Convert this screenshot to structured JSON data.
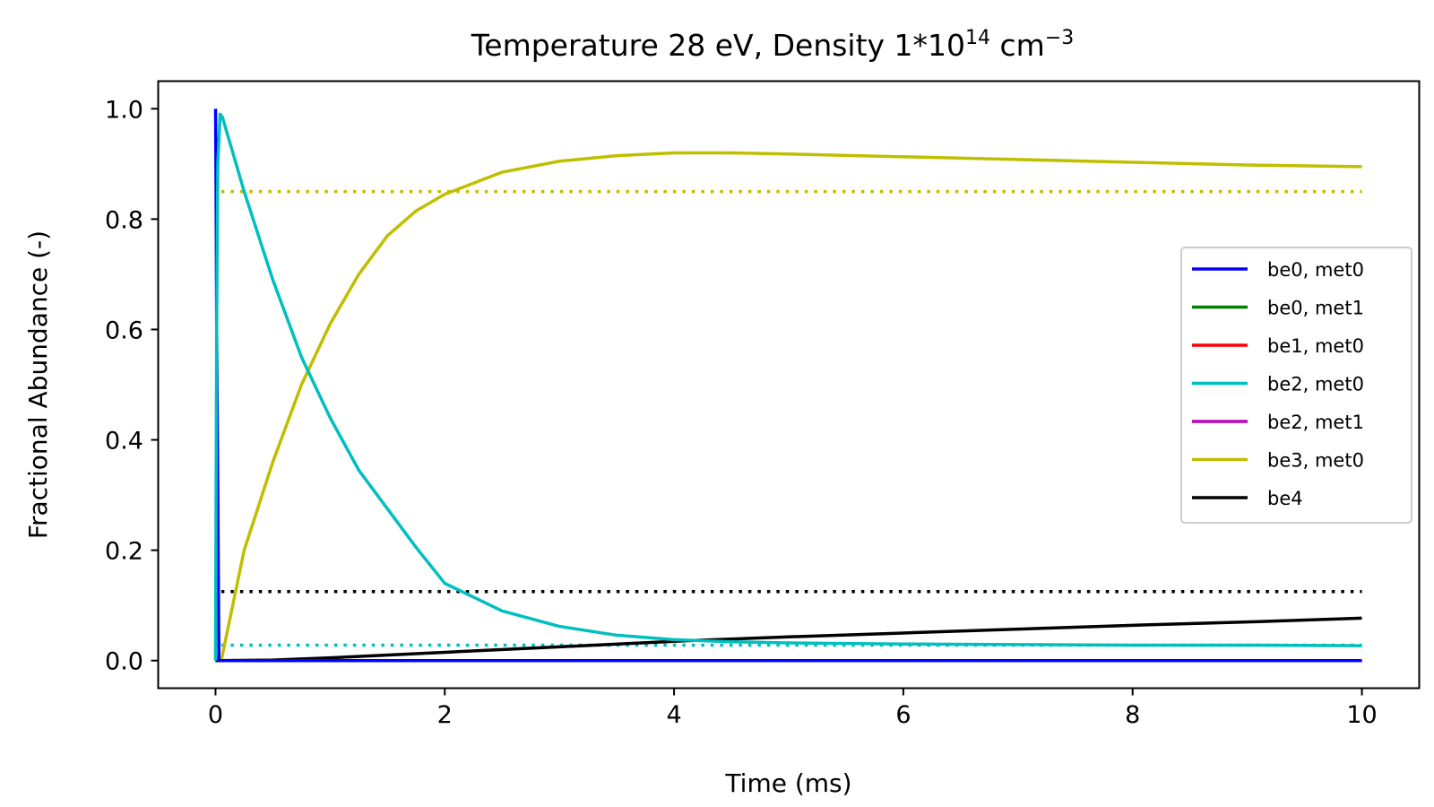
{
  "chart_data": {
    "type": "line",
    "title_main": "Temperature 28 eV, Density 1*10",
    "title_exp1": "14",
    "title_unit": " cm",
    "title_exp2": "−3",
    "xlabel": "Time (ms)",
    "ylabel": "Fractional Abundance (-)",
    "xlim": [
      -0.5,
      10.5
    ],
    "ylim": [
      -0.05,
      1.05
    ],
    "xticks": [
      0,
      2,
      4,
      6,
      8,
      10
    ],
    "xtick_labels": [
      "0",
      "2",
      "4",
      "6",
      "8",
      "10"
    ],
    "yticks": [
      0.0,
      0.2,
      0.4,
      0.6,
      0.8,
      1.0
    ],
    "ytick_labels": [
      "0.0",
      "0.2",
      "0.4",
      "0.6",
      "0.8",
      "1.0"
    ],
    "grid": false,
    "legend_position": "center-right",
    "series": [
      {
        "name": "be0, met0",
        "color": "#0000ff",
        "x": [
          0,
          0.0005,
          0.002,
          0.005,
          0.01,
          0.02,
          0.03,
          10
        ],
        "y": [
          1.0,
          0.999,
          0.95,
          0.85,
          0.6,
          0.3,
          0.0,
          0.0
        ]
      },
      {
        "name": "be0, met1",
        "color": "#008000",
        "x": [
          0,
          10
        ],
        "y": [
          0.0,
          0.0
        ]
      },
      {
        "name": "be1, met0",
        "color": "#ff0000",
        "x": [
          0,
          0.01,
          0.02,
          0.03,
          0.05,
          10
        ],
        "y": [
          0.0,
          0.004,
          0.004,
          0.003,
          0.0,
          0.0
        ]
      },
      {
        "name": "be2, met0",
        "color": "#00bfbf",
        "x": [
          0,
          0.01,
          0.02,
          0.04,
          0.06,
          0.25,
          0.5,
          0.75,
          1.0,
          1.25,
          1.5,
          1.75,
          2.0,
          2.5,
          3.0,
          3.5,
          4.0,
          4.5,
          5.0,
          6.0,
          7.0,
          8.0,
          9.0,
          10.0
        ],
        "y": [
          0.0,
          0.6,
          0.9,
          0.99,
          0.985,
          0.85,
          0.69,
          0.55,
          0.44,
          0.345,
          0.275,
          0.205,
          0.14,
          0.09,
          0.062,
          0.046,
          0.038,
          0.034,
          0.032,
          0.03,
          0.029,
          0.028,
          0.028,
          0.027
        ]
      },
      {
        "name": "be2, met1",
        "color": "#bf00bf",
        "x": [
          0,
          10
        ],
        "y": [
          0.0,
          0.0
        ]
      },
      {
        "name": "be3, met0",
        "color": "#bfbf00",
        "x": [
          0.05,
          0.25,
          0.5,
          0.75,
          1.0,
          1.25,
          1.5,
          1.75,
          2.0,
          2.5,
          3.0,
          3.5,
          4.0,
          4.5,
          5.0,
          6.0,
          7.0,
          8.0,
          9.0,
          10.0
        ],
        "y": [
          0.0,
          0.2,
          0.36,
          0.5,
          0.61,
          0.7,
          0.77,
          0.815,
          0.845,
          0.885,
          0.905,
          0.915,
          0.92,
          0.92,
          0.918,
          0.913,
          0.908,
          0.903,
          0.898,
          0.895
        ]
      },
      {
        "name": "be4",
        "color": "#000000",
        "x": [
          0,
          0.5,
          1,
          2,
          3,
          4,
          5,
          6,
          7,
          8,
          9,
          10
        ],
        "y": [
          0.0,
          0.001,
          0.005,
          0.015,
          0.025,
          0.035,
          0.043,
          0.05,
          0.057,
          0.064,
          0.07,
          0.077
        ]
      }
    ],
    "reference_lines": [
      {
        "color": "#bfbf00",
        "y": 0.85,
        "x": [
          0.05,
          10
        ]
      },
      {
        "color": "#000000",
        "y": 0.125,
        "x": [
          0.05,
          10
        ]
      },
      {
        "color": "#00bfbf",
        "y": 0.028,
        "x": [
          0.05,
          10
        ]
      }
    ]
  }
}
